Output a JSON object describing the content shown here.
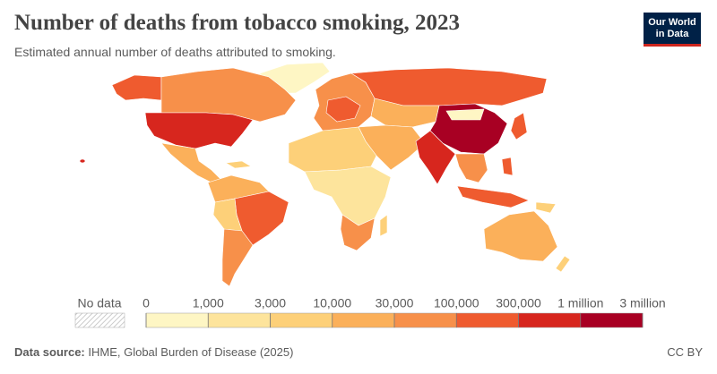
{
  "header": {
    "title": "Number of deaths from tobacco smoking, 2023",
    "subtitle": "Estimated annual number of deaths attributed to smoking.",
    "logo": "Our World in Data"
  },
  "legend": {
    "no_data": "No data",
    "ticks": [
      0,
      {
        "value": 1000,
        "label": "1,000"
      },
      {
        "value": 3000,
        "label": "3,000"
      },
      {
        "value": 10000,
        "label": "10,000"
      },
      {
        "value": 30000,
        "label": "30,000"
      },
      {
        "value": 100000,
        "label": "100,000"
      },
      {
        "value": 300000,
        "label": "300,000"
      },
      {
        "value": 1000000,
        "label": "1 million"
      },
      {
        "value": 3000000,
        "label": "3 million"
      }
    ],
    "colors": [
      "#fef6c4",
      "#fde49c",
      "#fdd079",
      "#fbb05a",
      "#f7904a",
      "#ef5b2f",
      "#d7261e",
      "#a80023"
    ]
  },
  "footer": {
    "source_label": "Data source:",
    "source": "IHME, Global Burden of Disease (2025)",
    "license": "CC BY"
  }
}
